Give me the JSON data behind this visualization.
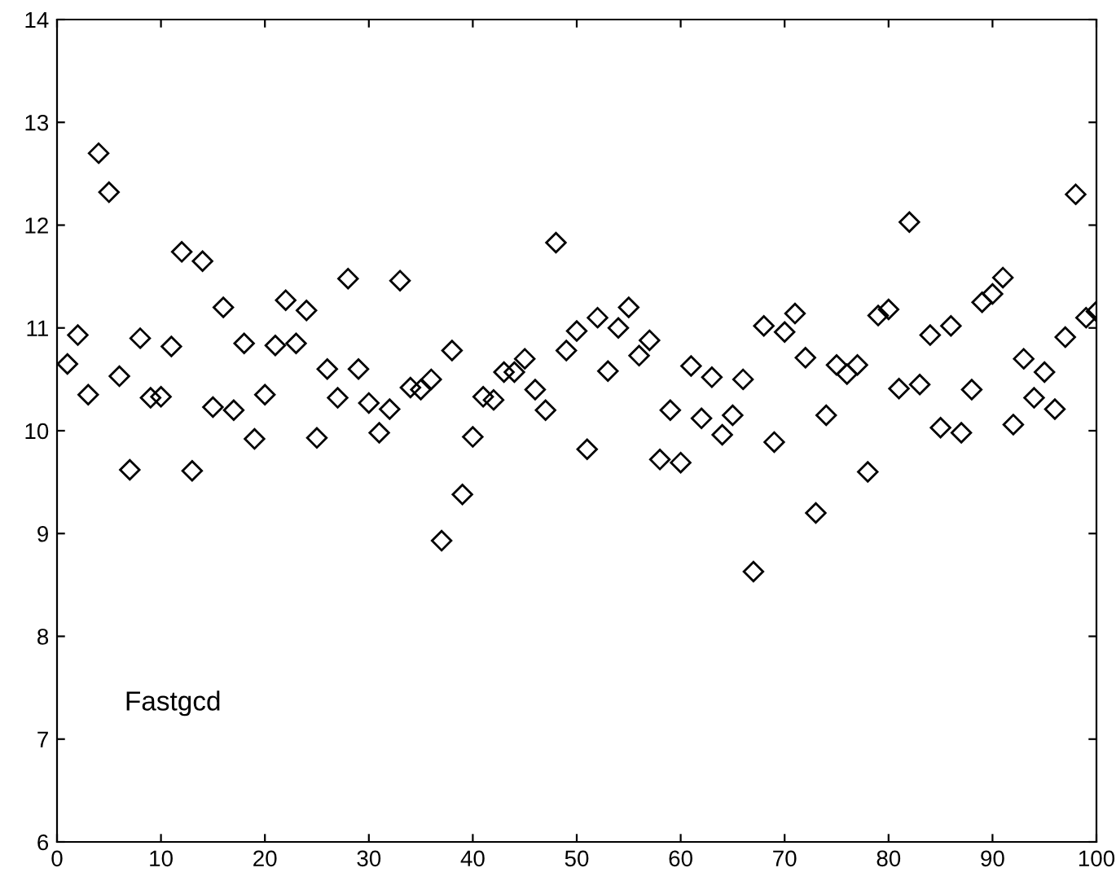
{
  "chart_data": {
    "type": "scatter",
    "marker": "diamond",
    "grid": false,
    "legend": false,
    "x": [
      1,
      2,
      3,
      4,
      5,
      6,
      7,
      8,
      9,
      10,
      11,
      12,
      13,
      14,
      15,
      16,
      17,
      18,
      19,
      20,
      21,
      22,
      23,
      24,
      25,
      26,
      27,
      28,
      29,
      30,
      31,
      32,
      33,
      34,
      35,
      36,
      37,
      38,
      39,
      40,
      41,
      42,
      43,
      44,
      45,
      46,
      47,
      48,
      49,
      50,
      51,
      52,
      53,
      54,
      55,
      56,
      57,
      58,
      59,
      60,
      61,
      62,
      63,
      64,
      65,
      66,
      67,
      68,
      69,
      70,
      71,
      72,
      73,
      74,
      75,
      76,
      77,
      78,
      79,
      80,
      81,
      82,
      83,
      84,
      85,
      86,
      87,
      88,
      89,
      90,
      91,
      92,
      93,
      94,
      95,
      96,
      97,
      98,
      99,
      100
    ],
    "series": [
      {
        "color": "#000000",
        "values": [
          10.65,
          10.93,
          10.35,
          12.7,
          12.32,
          10.53,
          9.62,
          10.9,
          10.32,
          10.33,
          10.82,
          11.74,
          9.61,
          11.65,
          10.23,
          11.2,
          10.2,
          10.85,
          9.92,
          10.35,
          10.83,
          11.27,
          10.85,
          11.17,
          9.93,
          10.6,
          10.32,
          11.48,
          10.6,
          10.27,
          9.98,
          10.21,
          11.46,
          10.42,
          10.4,
          10.5,
          8.93,
          10.78,
          9.38,
          9.94,
          10.33,
          10.3,
          10.57,
          10.57,
          10.7,
          10.4,
          10.2,
          11.83,
          10.78,
          10.97,
          9.82,
          11.1,
          10.58,
          11.0,
          11.2,
          10.73,
          10.88,
          9.72,
          10.2,
          9.69,
          10.63,
          10.12,
          10.52,
          9.96,
          10.15,
          10.5,
          8.63,
          11.02,
          9.89,
          10.96,
          11.14,
          10.71,
          9.2,
          10.15,
          10.64,
          10.55,
          10.64,
          9.6,
          11.12,
          11.18,
          10.41,
          12.03,
          10.45,
          10.93,
          10.03,
          11.02,
          9.98,
          10.4,
          11.25,
          11.33,
          11.49,
          10.06,
          10.7,
          10.32,
          10.57,
          10.21,
          10.91,
          12.3,
          11.1,
          11.16
        ]
      }
    ],
    "xlim": [
      0,
      100
    ],
    "xticks": [
      0,
      10,
      20,
      30,
      40,
      50,
      60,
      70,
      80,
      90,
      100
    ],
    "ylim": [
      6,
      14
    ],
    "yticks": [
      6,
      7,
      8,
      9,
      10,
      11,
      12,
      13,
      14
    ],
    "annotations": [
      "Fastgcd"
    ]
  }
}
